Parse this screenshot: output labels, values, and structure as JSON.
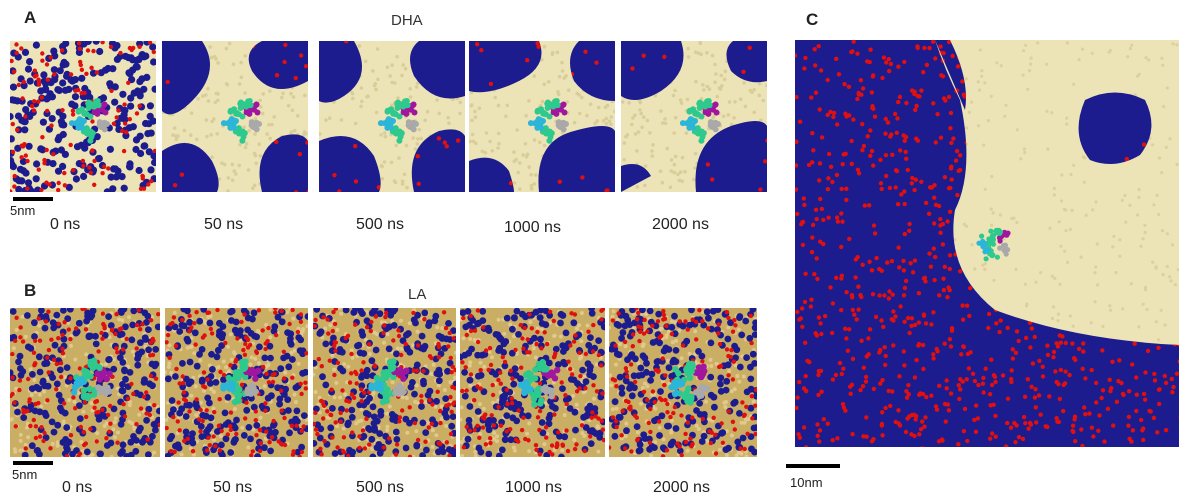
{
  "panel_a": {
    "label": "A",
    "title": "DHA",
    "scale": "5nm",
    "times": [
      "0 ns",
      "50 ns",
      "500 ns",
      "1000 ns",
      "2000 ns"
    ]
  },
  "panel_b": {
    "label": "B",
    "title": "LA",
    "scale": "5nm",
    "times": [
      "0 ns",
      "50 ns",
      "500 ns",
      "1000 ns",
      "2000 ns"
    ]
  },
  "panel_c": {
    "label": "C",
    "scale": "10nm"
  },
  "colors": {
    "lipid_blue": "#1c1c8e",
    "headgroup_red": "#e01010",
    "dha_bg": "#ece3b6",
    "la_bg": "#c9ae63",
    "protein_green": "#2ec98d",
    "protein_cyan": "#2bb6d8",
    "protein_magenta": "#a0169f",
    "protein_gray": "#a9a9a9"
  }
}
